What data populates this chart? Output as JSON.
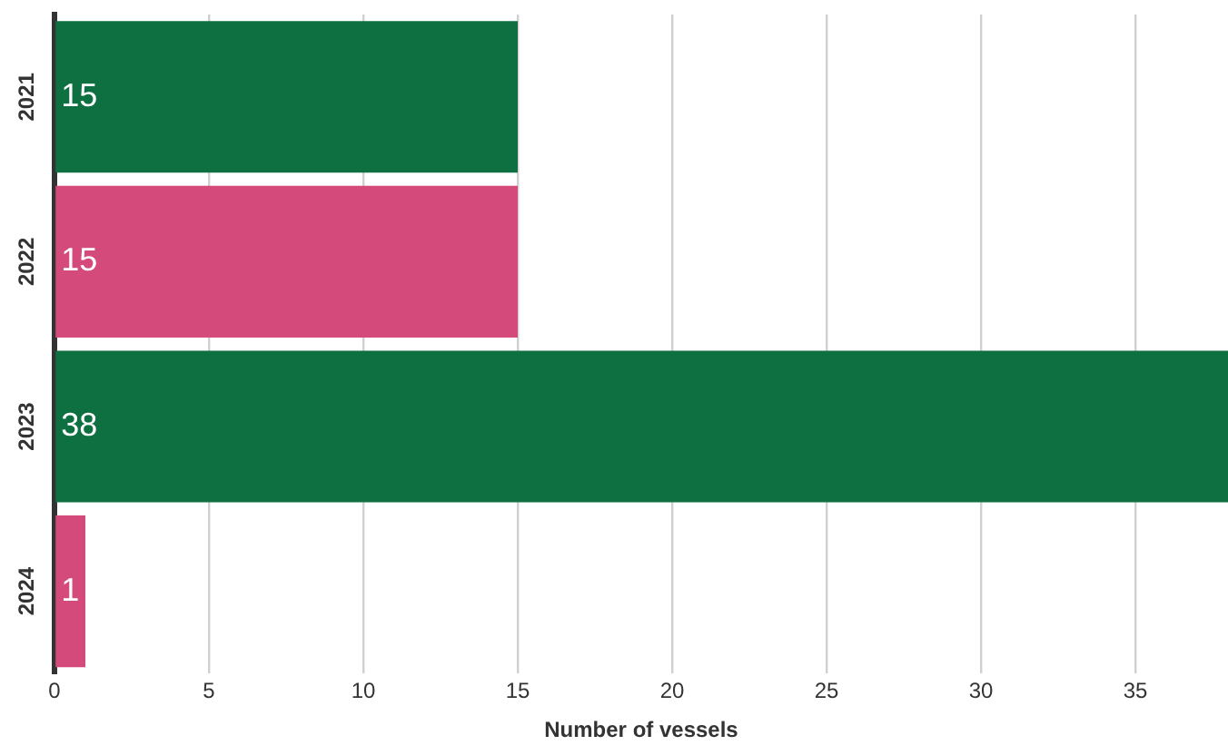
{
  "chart_data": {
    "type": "bar",
    "orientation": "horizontal",
    "xlabel": "Number of vessels",
    "categories": [
      "2021",
      "2022",
      "2023",
      "2024"
    ],
    "values": [
      15,
      15,
      38,
      1
    ],
    "colors": [
      "#0e7040",
      "#d44a7a",
      "#0e7040",
      "#d44a7a"
    ],
    "xlim": [
      0,
      38
    ],
    "xticks": [
      0,
      5,
      10,
      15,
      20,
      25,
      30,
      35
    ],
    "grid": "x",
    "data_labels": true,
    "legend": false
  }
}
